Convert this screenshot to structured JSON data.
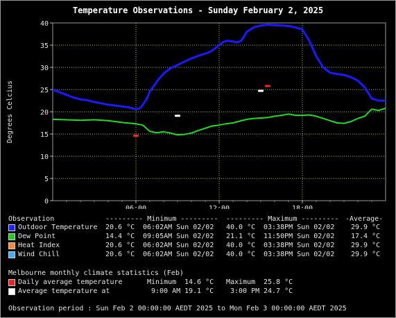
{
  "title": "Temperature Observations - Sunday February 2, 2025",
  "chart_data": {
    "type": "line",
    "ylabel": "Degrees Celcius",
    "ylim": [
      0,
      40
    ],
    "yticks": [
      "0",
      "5",
      "10",
      "15",
      "20",
      "25",
      "30",
      "35",
      "40"
    ],
    "xlim_hours": [
      0,
      24
    ],
    "xticks": [
      {
        "hour": 6,
        "label": "06:00"
      },
      {
        "hour": 12,
        "label": "12:00"
      },
      {
        "hour": 18,
        "label": "18:00"
      }
    ],
    "grid": true,
    "series": [
      {
        "name": "Outdoor Temperature",
        "color": "#1a1aff",
        "x": [
          0,
          0.5,
          1,
          1.5,
          2,
          2.5,
          3,
          3.5,
          4,
          4.5,
          5,
          5.5,
          5.8,
          6.05,
          6.3,
          6.5,
          6.8,
          7,
          7.3,
          7.6,
          8,
          8.5,
          9,
          9.5,
          10,
          10.5,
          11,
          11.3,
          11.6,
          12,
          12.3,
          12.6,
          13,
          13.3,
          13.6,
          14,
          14.5,
          15,
          15.5,
          16,
          16.5,
          17,
          17.5,
          18,
          18.5,
          19,
          19.5,
          20,
          20.5,
          21,
          21.5,
          22,
          22.5,
          23,
          23.5,
          24
        ],
        "y": [
          25,
          24.4,
          23.8,
          23.2,
          22.8,
          22.6,
          22.2,
          21.9,
          21.6,
          21.4,
          21.2,
          21,
          20.7,
          20.6,
          20.8,
          21.6,
          23,
          24.6,
          25.8,
          27.2,
          28.6,
          29.8,
          30.5,
          31.3,
          32,
          32.6,
          33.1,
          33.4,
          34,
          35,
          35.7,
          36,
          35.8,
          35.6,
          36,
          38,
          39,
          39.4,
          39.6,
          39.5,
          39.4,
          39.3,
          39,
          38.5,
          36,
          32.5,
          30,
          28.8,
          28.5,
          28.3,
          27.8,
          27,
          25.5,
          23,
          22.5,
          22.5
        ]
      },
      {
        "name": "Dew Point",
        "color": "#22dd22",
        "x": [
          0,
          1,
          2,
          3,
          4,
          5,
          6,
          6.5,
          7,
          7.5,
          8,
          8.5,
          9,
          9.5,
          10,
          10.5,
          11,
          11.5,
          12,
          12.5,
          13,
          13.5,
          14,
          14.5,
          15,
          15.5,
          16,
          16.5,
          17,
          17.5,
          18,
          18.5,
          19,
          19.5,
          20,
          20.5,
          21,
          21.5,
          22,
          22.5,
          23,
          23.5,
          24
        ],
        "y": [
          18.3,
          18.2,
          18.1,
          18.2,
          18,
          17.6,
          17.3,
          17,
          15.6,
          15.3,
          15.5,
          15.2,
          14.8,
          14.9,
          15.2,
          15.8,
          16.3,
          16.8,
          17,
          17.3,
          17.5,
          17.9,
          18.3,
          18.5,
          18.6,
          18.7,
          19,
          19.2,
          19.5,
          19.2,
          19.2,
          19.3,
          19,
          18.5,
          18,
          17.5,
          17.4,
          17.8,
          18.5,
          19,
          20.6,
          20.3,
          20.8
        ]
      }
    ],
    "markers": [
      {
        "name": "Daily average temperature min",
        "hour": 6,
        "value": 14.6,
        "color": "#ff2222"
      },
      {
        "name": "Average temperature at 9:00 AM",
        "hour": 9,
        "value": 19.1,
        "color": "#ffffff"
      },
      {
        "name": "Average temperature at 3:00 PM",
        "hour": 15,
        "value": 24.7,
        "color": "#ffffff"
      },
      {
        "name": "Daily average temperature max",
        "hour": 15.5,
        "value": 25.8,
        "color": "#ff2222"
      }
    ]
  },
  "table": {
    "header": [
      "Observation",
      "--------- Minimum ---------",
      "--------- Maximum ---------",
      "-Average-"
    ],
    "rows": [
      {
        "label": "Outdoor Temperature",
        "color": "#2222ff",
        "min_val": "20.6 °C",
        "min_time": "06:02AM Sun 02/02",
        "max_val": "40.0 °C",
        "max_time": "03:38PM Sun 02/02",
        "avg": "29.9 °C"
      },
      {
        "label": "Dew Point",
        "color": "#22cc22",
        "min_val": "14.4 °C",
        "min_time": "09:05AM Sun 02/02",
        "max_val": "21.1 °C",
        "max_time": "11:50PM Sun 02/02",
        "avg": "17.4 °C"
      },
      {
        "label": "Heat Index",
        "color": "#ff8833",
        "min_val": "20.6 °C",
        "min_time": "06:02AM Sun 02/02",
        "max_val": "40.0 °C",
        "max_time": "03:38PM Sun 02/02",
        "avg": "29.9 °C"
      },
      {
        "label": "Wind Chill",
        "color": "#44aaff",
        "min_val": "20.6 °C",
        "min_time": "06:02AM Sun 02/02",
        "max_val": "40.0 °C",
        "max_time": "03:38PM Sun 02/02",
        "avg": "29.9 °C"
      }
    ]
  },
  "climate": {
    "heading": "Melbourne monthly climate statistics (Feb)",
    "rows": [
      {
        "label": "Daily average temperature",
        "color": "#ee2222",
        "c1": "Minimum",
        "v1": "14.6 °C",
        "c2": "Maximum",
        "v2": "25.8 °C"
      },
      {
        "label": "Average temperature at",
        "color": "#ffffff",
        "c1": "9:00 AM",
        "v1": "19.1 °C",
        "c2": "3:00 PM",
        "v2": "24.7 °C"
      }
    ]
  },
  "period": "Observation period : Sun Feb 2 00:00:00 AEDT 2025 to Mon Feb 3 00:00:00 AEDT 2025"
}
